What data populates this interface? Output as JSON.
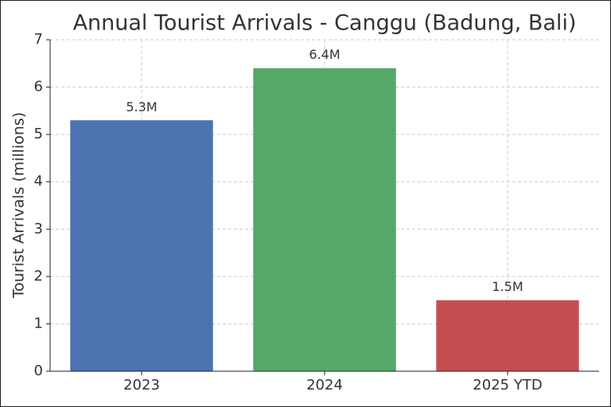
{
  "chart_data": {
    "type": "bar",
    "title": "Annual Tourist Arrivals - Canggu (Badung, Bali)",
    "y_label": "Tourist Arrivals (millions)",
    "categories": [
      "2023",
      "2024",
      "2025 YTD"
    ],
    "values": [
      5.3,
      6.4,
      1.5
    ],
    "value_labels": [
      "5.3M",
      "6.4M",
      "1.5M"
    ],
    "colors": [
      "#4c72b0",
      "#55a868",
      "#c44e52"
    ],
    "ylim": [
      0,
      7
    ],
    "yticks": [
      0,
      1,
      2,
      3,
      4,
      5,
      6,
      7
    ],
    "grid": true
  }
}
